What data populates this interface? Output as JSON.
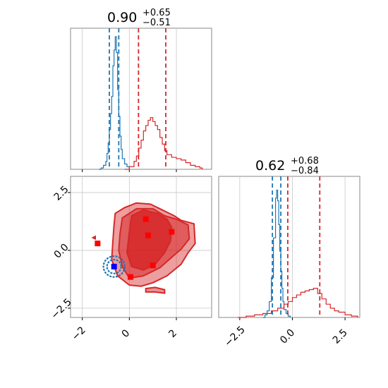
{
  "colors": {
    "red": "#d62728",
    "blue": "#1f77b4",
    "grid": "#c8c8c8",
    "spine": "#888888"
  },
  "chart_data": {
    "type": "corner",
    "grid": true,
    "parameters": [
      "x",
      "y"
    ],
    "marginals": [
      {
        "param": "x",
        "title": {
          "median": "0.90",
          "upper": "+0.65",
          "lower": "−0.51"
        },
        "xlim": [
          -2.5,
          3.5
        ],
        "series": [
          {
            "color": "#1f77b4",
            "quantiles": [
              -0.85,
              -0.45
            ],
            "x": [
              -1.3,
              -1.2,
              -1.1,
              -1.0,
              -0.95,
              -0.9,
              -0.85,
              -0.8,
              -0.75,
              -0.7,
              -0.65,
              -0.6,
              -0.55,
              -0.5,
              -0.45,
              -0.4,
              -0.35,
              -0.3,
              -0.2,
              -0.1,
              0.0
            ],
            "y": [
              0.0,
              0.01,
              0.03,
              0.06,
              0.12,
              0.2,
              0.3,
              0.42,
              0.55,
              0.78,
              0.9,
              1.0,
              0.88,
              0.6,
              0.4,
              0.25,
              0.15,
              0.08,
              0.04,
              0.02,
              0.0
            ]
          },
          {
            "color": "#d62728",
            "quantiles": [
              0.39,
              1.55
            ],
            "x": [
              -0.2,
              0.0,
              0.2,
              0.3,
              0.4,
              0.5,
              0.6,
              0.7,
              0.8,
              0.9,
              1.0,
              1.1,
              1.2,
              1.3,
              1.4,
              1.5,
              1.6,
              1.8,
              2.0,
              2.2,
              2.4,
              2.6,
              2.8,
              3.0,
              3.1
            ],
            "y": [
              0.0,
              0.02,
              0.06,
              0.1,
              0.16,
              0.22,
              0.29,
              0.33,
              0.37,
              0.39,
              0.36,
              0.33,
              0.3,
              0.24,
              0.19,
              0.14,
              0.11,
              0.09,
              0.08,
              0.07,
              0.05,
              0.03,
              0.02,
              0.01,
              0.0
            ]
          }
        ]
      },
      {
        "param": "y",
        "title": {
          "median": "0.62",
          "upper": "+0.68",
          "lower": "−0.84"
        },
        "xlim": [
          -3.5,
          3.2
        ],
        "xticks": [
          -2.5,
          0.0,
          2.5
        ],
        "xticklabels": [
          "−2.5",
          "0.0",
          "2.5"
        ],
        "series": [
          {
            "color": "#1f77b4",
            "quantiles": [
              -0.95,
              -0.55
            ],
            "x": [
              -1.4,
              -1.3,
              -1.2,
              -1.1,
              -1.0,
              -0.9,
              -0.8,
              -0.75,
              -0.7,
              -0.65,
              -0.6,
              -0.55,
              -0.5,
              -0.45,
              -0.4,
              -0.3,
              -0.2,
              -0.1
            ],
            "y": [
              0.0,
              0.02,
              0.05,
              0.12,
              0.3,
              0.6,
              0.9,
              0.96,
              0.88,
              0.7,
              0.5,
              0.35,
              0.22,
              0.12,
              0.06,
              0.03,
              0.01,
              0.0
            ]
          },
          {
            "color": "#d62728",
            "quantiles": [
              -0.22,
              1.3
            ],
            "x": [
              -2.6,
              -2.2,
              -1.8,
              -1.4,
              -1.0,
              -0.7,
              -0.4,
              -0.2,
              0.0,
              0.2,
              0.4,
              0.6,
              0.8,
              1.0,
              1.2,
              1.4,
              1.6,
              1.8,
              2.0,
              2.2,
              2.5,
              2.8,
              3.1
            ],
            "y": [
              0.0,
              0.01,
              0.02,
              0.03,
              0.05,
              0.07,
              0.1,
              0.12,
              0.15,
              0.17,
              0.19,
              0.2,
              0.21,
              0.22,
              0.18,
              0.14,
              0.1,
              0.07,
              0.05,
              0.04,
              0.02,
              0.01,
              0.0
            ]
          }
        ]
      }
    ],
    "joint": {
      "xlim": [
        -2.5,
        3.5
      ],
      "ylim": [
        -2.9,
        3.2
      ],
      "xticks": [
        -2,
        0,
        2
      ],
      "xticklabels": [
        "−2",
        "0",
        "2"
      ],
      "yticks": [
        -2.5,
        0.0,
        2.5
      ],
      "yticklabels": [
        "−2.5",
        "0.0",
        "2.5"
      ],
      "red_contours": [
        {
          "level": "outer",
          "points": [
            [
              -0.6,
              1.6
            ],
            [
              -0.2,
              1.85
            ],
            [
              0.3,
              2.05
            ],
            [
              0.9,
              2.0
            ],
            [
              1.4,
              1.75
            ],
            [
              1.9,
              1.5
            ],
            [
              2.2,
              1.3
            ],
            [
              2.75,
              1.15
            ],
            [
              2.8,
              0.3
            ],
            [
              2.5,
              -0.1
            ],
            [
              2.2,
              -0.6
            ],
            [
              1.6,
              -1.1
            ],
            [
              1.0,
              -1.4
            ],
            [
              0.5,
              -1.55
            ],
            [
              0.0,
              -1.5
            ],
            [
              -0.5,
              -1.1
            ],
            [
              -0.75,
              -0.4
            ],
            [
              -0.7,
              0.4
            ],
            [
              -0.65,
              1.1
            ]
          ]
        },
        {
          "level": "middle",
          "points": [
            [
              -0.3,
              1.4
            ],
            [
              0.3,
              1.8
            ],
            [
              1.0,
              1.8
            ],
            [
              1.5,
              1.5
            ],
            [
              2.0,
              1.35
            ],
            [
              2.5,
              1.1
            ],
            [
              2.55,
              0.5
            ],
            [
              2.2,
              0.05
            ],
            [
              1.8,
              -0.3
            ],
            [
              1.3,
              -0.75
            ],
            [
              0.6,
              -1.1
            ],
            [
              0.0,
              -1.2
            ],
            [
              -0.3,
              -0.7
            ],
            [
              -0.45,
              0.0
            ],
            [
              -0.4,
              0.7
            ]
          ]
        },
        {
          "level": "inner",
          "points": [
            [
              0.1,
              1.5
            ],
            [
              0.6,
              1.75
            ],
            [
              1.2,
              1.6
            ],
            [
              1.6,
              1.35
            ],
            [
              1.8,
              1.0
            ],
            [
              1.75,
              0.4
            ],
            [
              1.5,
              -0.1
            ],
            [
              1.1,
              -0.6
            ],
            [
              0.6,
              -0.85
            ],
            [
              0.1,
              -0.7
            ],
            [
              -0.1,
              -0.1
            ],
            [
              0.0,
              0.8
            ]
          ]
        }
      ],
      "red_islands": [
        {
          "points": [
            [
              0.7,
              -1.65
            ],
            [
              1.1,
              -1.6
            ],
            [
              1.5,
              -1.7
            ],
            [
              1.5,
              -1.85
            ],
            [
              1.1,
              -1.8
            ],
            [
              0.7,
              -1.8
            ]
          ]
        },
        {
          "points": [
            [
              -1.55,
              0.55
            ],
            [
              -1.45,
              0.6
            ],
            [
              -1.45,
              0.5
            ]
          ]
        }
      ],
      "blue_contours": [
        {
          "cx": -0.65,
          "cy": -0.7,
          "rx": 0.45,
          "ry": 0.45
        },
        {
          "cx": -0.65,
          "cy": -0.7,
          "rx": 0.3,
          "ry": 0.3
        }
      ],
      "red_markers": [
        [
          -1.35,
          0.3
        ],
        [
          0.7,
          1.35
        ],
        [
          0.8,
          0.65
        ],
        [
          1.8,
          0.8
        ],
        [
          1.0,
          -0.65
        ],
        [
          0.05,
          -1.15
        ]
      ],
      "blue_markers": [
        [
          -0.65,
          -0.7
        ]
      ]
    }
  }
}
